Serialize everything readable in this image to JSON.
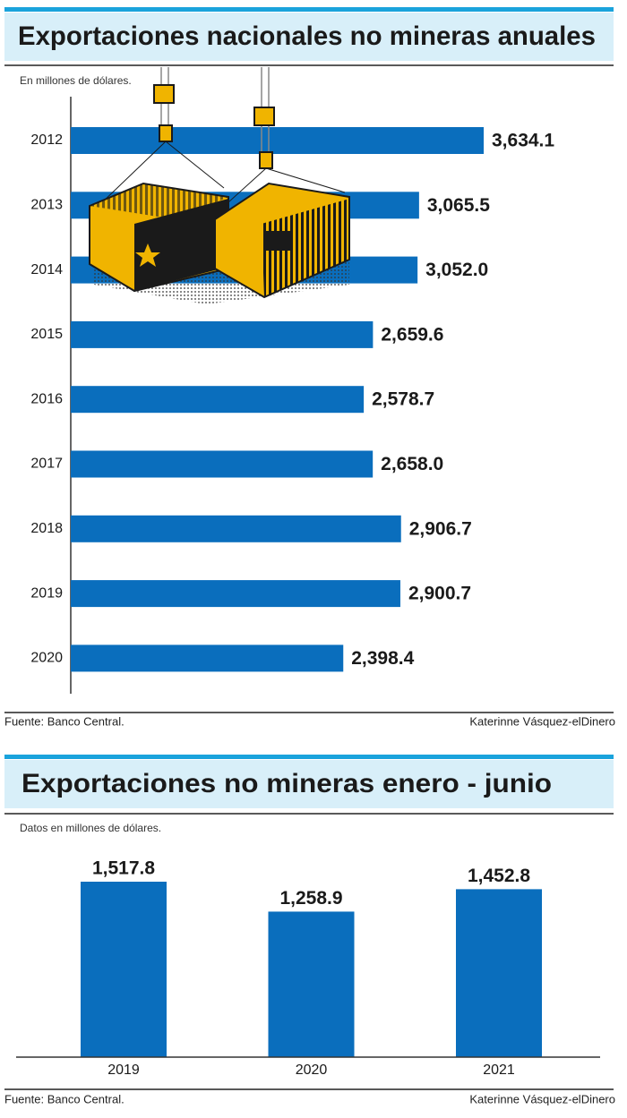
{
  "chart_data": [
    {
      "type": "bar",
      "orientation": "horizontal",
      "title": "Exportaciones nacionales no mineras anuales",
      "subtitle": "En millones de dólares.",
      "categories": [
        "2012",
        "2013",
        "2014",
        "2015",
        "2016",
        "2017",
        "2018",
        "2019",
        "2020"
      ],
      "values": [
        3634.1,
        3065.5,
        3052.0,
        2659.6,
        2578.7,
        2658.0,
        2906.7,
        2900.7,
        2398.4
      ],
      "value_labels": [
        "3,634.1",
        "3,065.5",
        "3,052.0",
        "2,659.6",
        "2,578.7",
        "2,658.0",
        "2,906.7",
        "2,900.7",
        "2,398.4"
      ],
      "color": "#0a6ebd",
      "source": "Fuente: Banco Central.",
      "credit": "Katerinne Vásquez-elDinero"
    },
    {
      "type": "bar",
      "orientation": "vertical",
      "title": "Exportaciones no mineras enero - junio",
      "subtitle": "Datos en millones de dólares.",
      "categories": [
        "2019",
        "2020",
        "2021"
      ],
      "values": [
        1517.8,
        1258.9,
        1452.8
      ],
      "value_labels": [
        "1,517.8",
        "1,258.9",
        "1,452.8"
      ],
      "color": "#0a6ebd",
      "source": "Fuente: Banco Central.",
      "credit": "Katerinne Vásquez-elDinero"
    }
  ]
}
